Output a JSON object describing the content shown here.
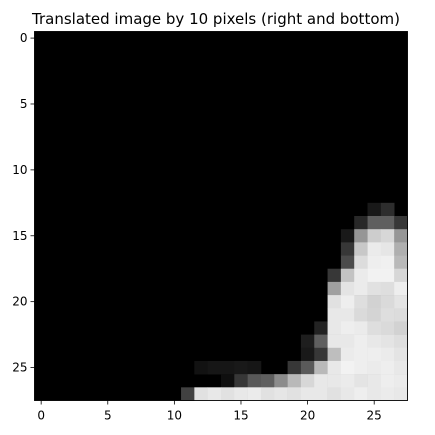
{
  "chart_data": {
    "type": "heatmap",
    "title": "Translated image by 10 pixels (right and bottom)",
    "colormap": "gray",
    "value_range": [
      0,
      255
    ],
    "grid": false,
    "x_ticks": [
      "0",
      "5",
      "10",
      "15",
      "20",
      "25"
    ],
    "y_ticks": [
      "0",
      "5",
      "10",
      "15",
      "20",
      "25"
    ],
    "rows": 28,
    "cols": 28,
    "nonzero_pixels": [
      [
        13,
        25,
        25
      ],
      [
        13,
        26,
        45
      ],
      [
        14,
        24,
        40
      ],
      [
        14,
        25,
        95
      ],
      [
        14,
        26,
        95
      ],
      [
        14,
        27,
        55
      ],
      [
        15,
        23,
        25
      ],
      [
        15,
        24,
        150
      ],
      [
        15,
        25,
        205
      ],
      [
        15,
        26,
        215
      ],
      [
        15,
        27,
        150
      ],
      [
        16,
        23,
        55
      ],
      [
        16,
        24,
        200
      ],
      [
        16,
        25,
        235
      ],
      [
        16,
        26,
        230
      ],
      [
        16,
        27,
        175
      ],
      [
        17,
        23,
        75
      ],
      [
        17,
        24,
        220
      ],
      [
        17,
        25,
        238
      ],
      [
        17,
        26,
        240
      ],
      [
        17,
        27,
        185
      ],
      [
        18,
        22,
        55
      ],
      [
        18,
        23,
        195
      ],
      [
        18,
        24,
        235
      ],
      [
        18,
        25,
        242
      ],
      [
        18,
        26,
        242
      ],
      [
        18,
        27,
        215
      ],
      [
        19,
        22,
        160
      ],
      [
        19,
        23,
        228
      ],
      [
        19,
        24,
        235
      ],
      [
        19,
        25,
        225
      ],
      [
        19,
        26,
        222
      ],
      [
        19,
        27,
        238
      ],
      [
        20,
        22,
        225
      ],
      [
        20,
        23,
        238
      ],
      [
        20,
        24,
        222
      ],
      [
        20,
        25,
        210
      ],
      [
        20,
        26,
        218
      ],
      [
        20,
        27,
        228
      ],
      [
        21,
        22,
        232
      ],
      [
        21,
        23,
        232
      ],
      [
        21,
        24,
        218
      ],
      [
        21,
        25,
        212
      ],
      [
        21,
        26,
        222
      ],
      [
        21,
        27,
        220
      ],
      [
        22,
        21,
        35
      ],
      [
        22,
        22,
        232
      ],
      [
        22,
        23,
        238
      ],
      [
        22,
        24,
        235
      ],
      [
        22,
        25,
        222
      ],
      [
        22,
        26,
        218
      ],
      [
        22,
        27,
        210
      ],
      [
        23,
        20,
        30
      ],
      [
        23,
        21,
        95
      ],
      [
        23,
        22,
        232
      ],
      [
        23,
        23,
        232
      ],
      [
        23,
        24,
        238
      ],
      [
        23,
        25,
        232
      ],
      [
        23,
        26,
        228
      ],
      [
        23,
        27,
        222
      ],
      [
        24,
        20,
        25
      ],
      [
        24,
        21,
        55
      ],
      [
        24,
        22,
        190
      ],
      [
        24,
        23,
        235
      ],
      [
        24,
        24,
        238
      ],
      [
        24,
        25,
        238
      ],
      [
        24,
        26,
        235
      ],
      [
        24,
        27,
        228
      ],
      [
        25,
        12,
        18
      ],
      [
        25,
        13,
        22
      ],
      [
        25,
        14,
        22
      ],
      [
        25,
        15,
        25
      ],
      [
        25,
        16,
        22
      ],
      [
        25,
        19,
        55
      ],
      [
        25,
        20,
        90
      ],
      [
        25,
        21,
        185
      ],
      [
        25,
        22,
        232
      ],
      [
        25,
        23,
        242
      ],
      [
        25,
        24,
        238
      ],
      [
        25,
        25,
        235
      ],
      [
        25,
        26,
        238
      ],
      [
        25,
        27,
        232
      ],
      [
        26,
        14,
        15
      ],
      [
        26,
        15,
        55
      ],
      [
        26,
        16,
        88
      ],
      [
        26,
        17,
        95
      ],
      [
        26,
        18,
        140
      ],
      [
        26,
        19,
        185
      ],
      [
        26,
        20,
        215
      ],
      [
        26,
        21,
        232
      ],
      [
        26,
        22,
        232
      ],
      [
        26,
        23,
        235
      ],
      [
        26,
        24,
        228
      ],
      [
        26,
        25,
        232
      ],
      [
        26,
        26,
        238
      ],
      [
        26,
        27,
        235
      ],
      [
        27,
        11,
        65
      ],
      [
        27,
        12,
        225
      ],
      [
        27,
        13,
        232
      ],
      [
        27,
        14,
        225
      ],
      [
        27,
        15,
        232
      ],
      [
        27,
        16,
        235
      ],
      [
        27,
        17,
        225
      ],
      [
        27,
        18,
        230
      ],
      [
        27,
        19,
        225
      ],
      [
        27,
        20,
        232
      ],
      [
        27,
        21,
        232
      ],
      [
        27,
        22,
        225
      ],
      [
        27,
        23,
        232
      ],
      [
        27,
        24,
        238
      ],
      [
        27,
        25,
        232
      ],
      [
        27,
        26,
        235
      ],
      [
        27,
        27,
        232
      ]
    ]
  }
}
